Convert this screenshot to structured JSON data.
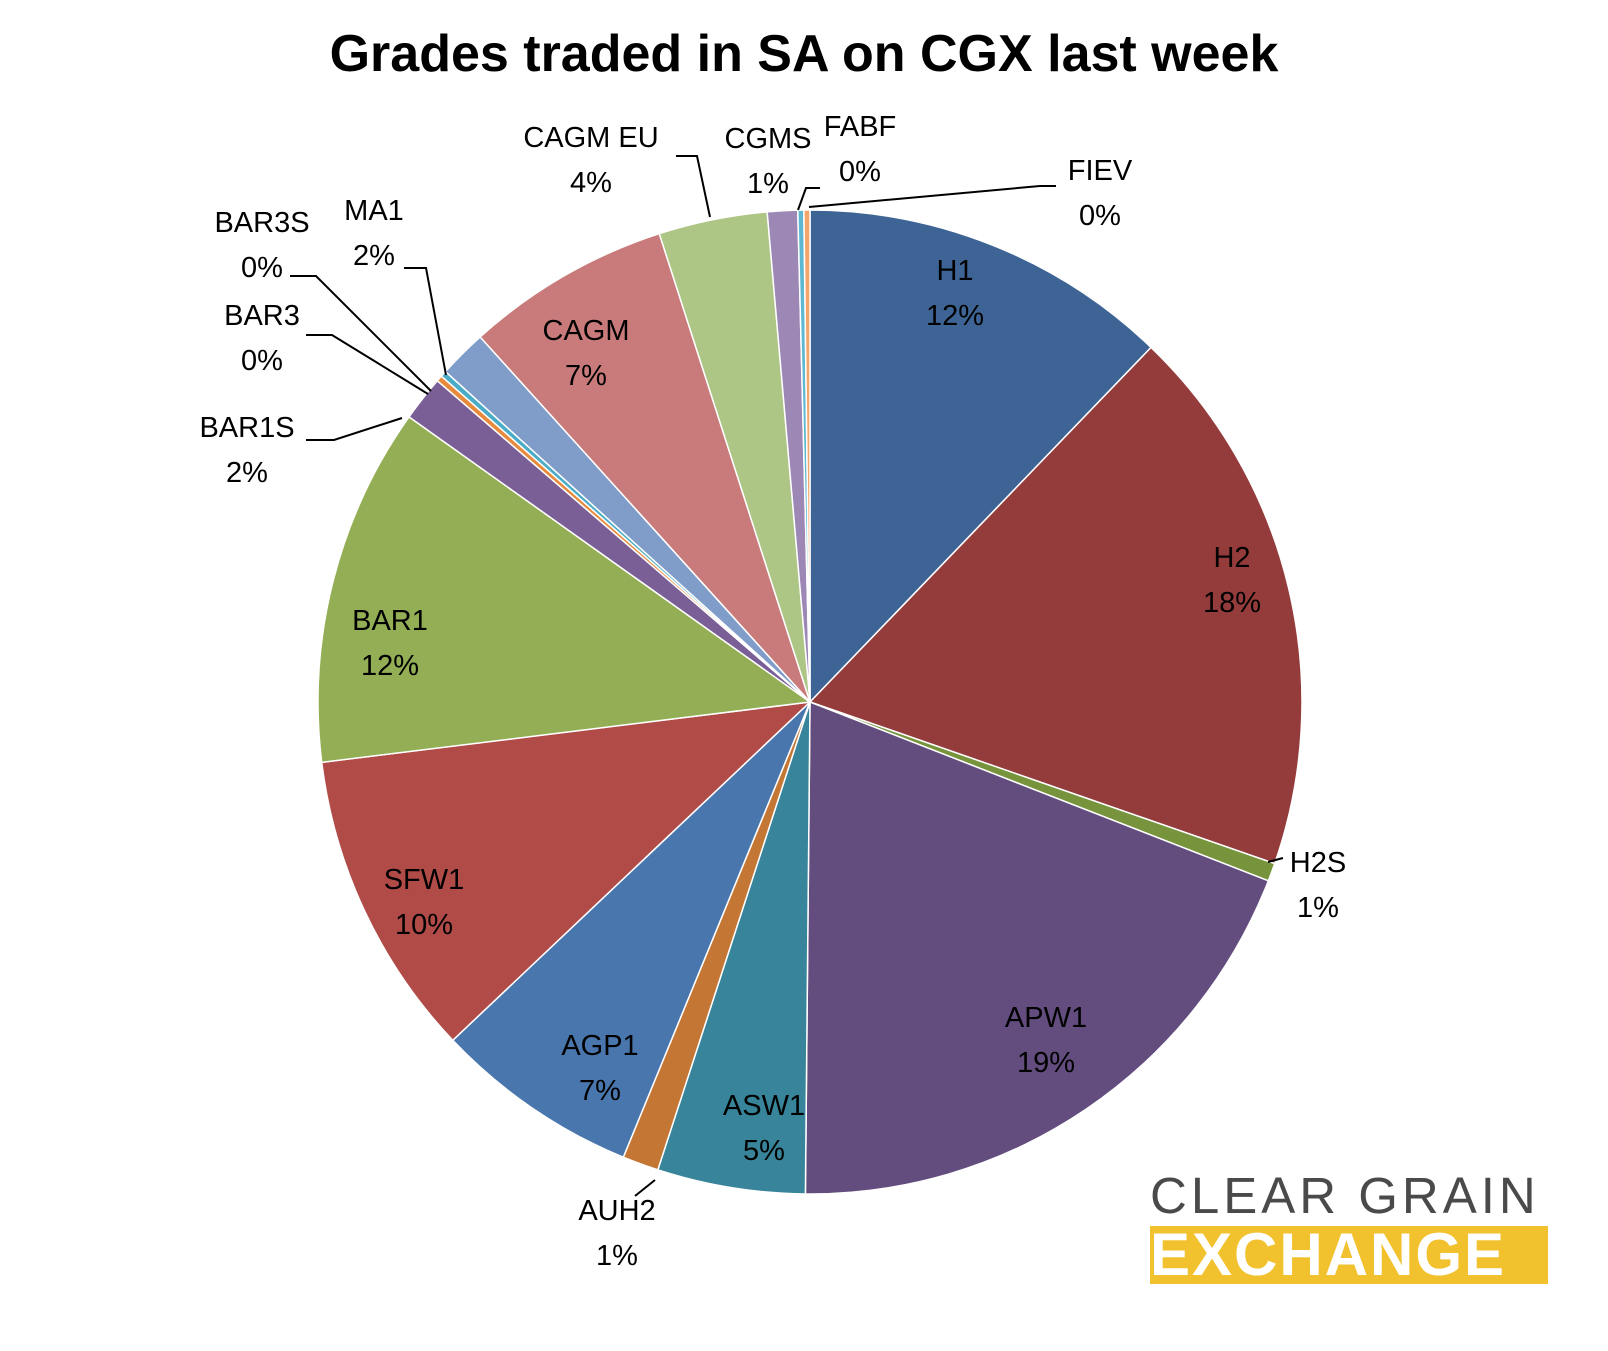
{
  "chart_data": {
    "type": "pie",
    "title": "Grades traded in SA on CGX last week",
    "start_angle_deg": 0,
    "direction": "clockwise",
    "slices": [
      {
        "label": "H1",
        "value": 12.3,
        "pct_label": "12%",
        "color": "#3e6496"
      },
      {
        "label": "H2",
        "value": 18.3,
        "pct_label": "18%",
        "color": "#943c3b"
      },
      {
        "label": "H2S",
        "value": 0.6,
        "pct_label": "1%",
        "color": "#77933c"
      },
      {
        "label": "APW1",
        "value": 19.4,
        "pct_label": "19%",
        "color": "#634d7e"
      },
      {
        "label": "ASW1",
        "value": 4.9,
        "pct_label": "5%",
        "color": "#38849a"
      },
      {
        "label": "AUH2",
        "value": 1.2,
        "pct_label": "1%",
        "color": "#c47634"
      },
      {
        "label": "AGP1",
        "value": 6.8,
        "pct_label": "7%",
        "color": "#4a76ae"
      },
      {
        "label": "SFW1",
        "value": 10.2,
        "pct_label": "10%",
        "color": "#b04b48"
      },
      {
        "label": "BAR1",
        "value": 11.9,
        "pct_label": "12%",
        "color": "#93ae54"
      },
      {
        "label": "BAR1S",
        "value": 1.5,
        "pct_label": "2%",
        "color": "#7a5e96"
      },
      {
        "label": "BAR3",
        "value": 0.2,
        "pct_label": "0%",
        "color": "#e88a3c"
      },
      {
        "label": "BAR3S",
        "value": 0.2,
        "pct_label": "0%",
        "color": "#4aacc6"
      },
      {
        "label": "MA1",
        "value": 1.6,
        "pct_label": "2%",
        "color": "#809cc9"
      },
      {
        "label": "CAGM",
        "value": 6.8,
        "pct_label": "7%",
        "color": "#c87b7a"
      },
      {
        "label": "CAGM EU",
        "value": 3.6,
        "pct_label": "4%",
        "color": "#adc585"
      },
      {
        "label": "CGMS",
        "value": 1.0,
        "pct_label": "1%",
        "color": "#9c87b5"
      },
      {
        "label": "FABF",
        "value": 0.2,
        "pct_label": "0%",
        "color": "#5fb8d1"
      },
      {
        "label": "FIEV",
        "value": 0.2,
        "pct_label": "0%",
        "color": "#f6a56a"
      }
    ]
  },
  "logo": {
    "line1": "CLEAR GRAIN",
    "line2": "EXCHANGE",
    "accent_color": "#f2c22e",
    "text_color": "#4a4a4a"
  }
}
